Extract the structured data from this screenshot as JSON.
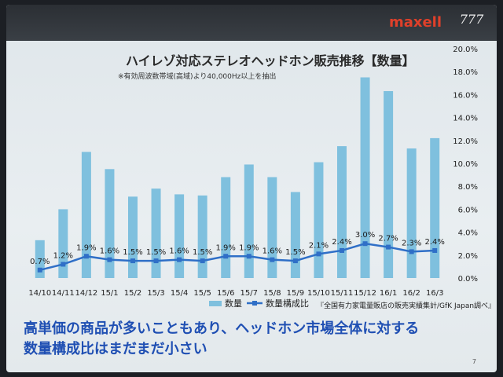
{
  "brand": "maxell",
  "logo_text": "777",
  "page_number": "7",
  "caption_line1": "高単価の商品が多いこともあり、ヘッドホン市場全体に対する",
  "caption_line2": "数量構成比はまだまだ小さい",
  "source_note": "『全国有力家電量販店の販売実績集計/GfK Japan調べ』",
  "chart_data": {
    "type": "bar",
    "title": "ハイレゾ対応ステレオヘッドホン販売推移【数量】",
    "subtitle": "※有効周波数帯域(高域)より40,000Hz以上を抽出",
    "categories": [
      "14/10",
      "14/11",
      "14/12",
      "15/1",
      "15/2",
      "15/3",
      "15/4",
      "15/5",
      "15/6",
      "15/7",
      "15/8",
      "15/9",
      "15/10",
      "15/11",
      "15/12",
      "16/1",
      "16/2",
      "16/3"
    ],
    "series": [
      {
        "name": "数量",
        "kind": "bar",
        "color": "#7fc0de",
        "values": [
          3.3,
          6.0,
          11.0,
          9.5,
          7.1,
          7.8,
          7.3,
          7.2,
          8.8,
          9.9,
          8.8,
          7.5,
          10.1,
          11.5,
          17.5,
          16.3,
          11.3,
          12.2
        ]
      },
      {
        "name": "数量構成比",
        "kind": "line",
        "color": "#2f6fc7",
        "values": [
          0.7,
          1.2,
          1.9,
          1.6,
          1.5,
          1.5,
          1.6,
          1.5,
          1.9,
          1.9,
          1.6,
          1.5,
          2.1,
          2.4,
          3.0,
          2.7,
          2.3,
          2.4
        ],
        "labels": [
          "0.7%",
          "1.2%",
          "1.9%",
          "1.6%",
          "1.5%",
          "1.5%",
          "1.6%",
          "1.5%",
          "1.9%",
          "1.9%",
          "1.6%",
          "1.5%",
          "2.1%",
          "2.4%",
          "3.0%",
          "2.7%",
          "2.3%",
          "2.4%"
        ]
      }
    ],
    "yaxis_right": {
      "ylim": [
        0,
        20
      ],
      "ticks": [
        "0.0%",
        "2.0%",
        "4.0%",
        "6.0%",
        "8.0%",
        "10.0%",
        "12.0%",
        "14.0%",
        "16.0%",
        "18.0%",
        "20.0%"
      ]
    },
    "grid": false,
    "legend_placement": "bottom-left"
  }
}
